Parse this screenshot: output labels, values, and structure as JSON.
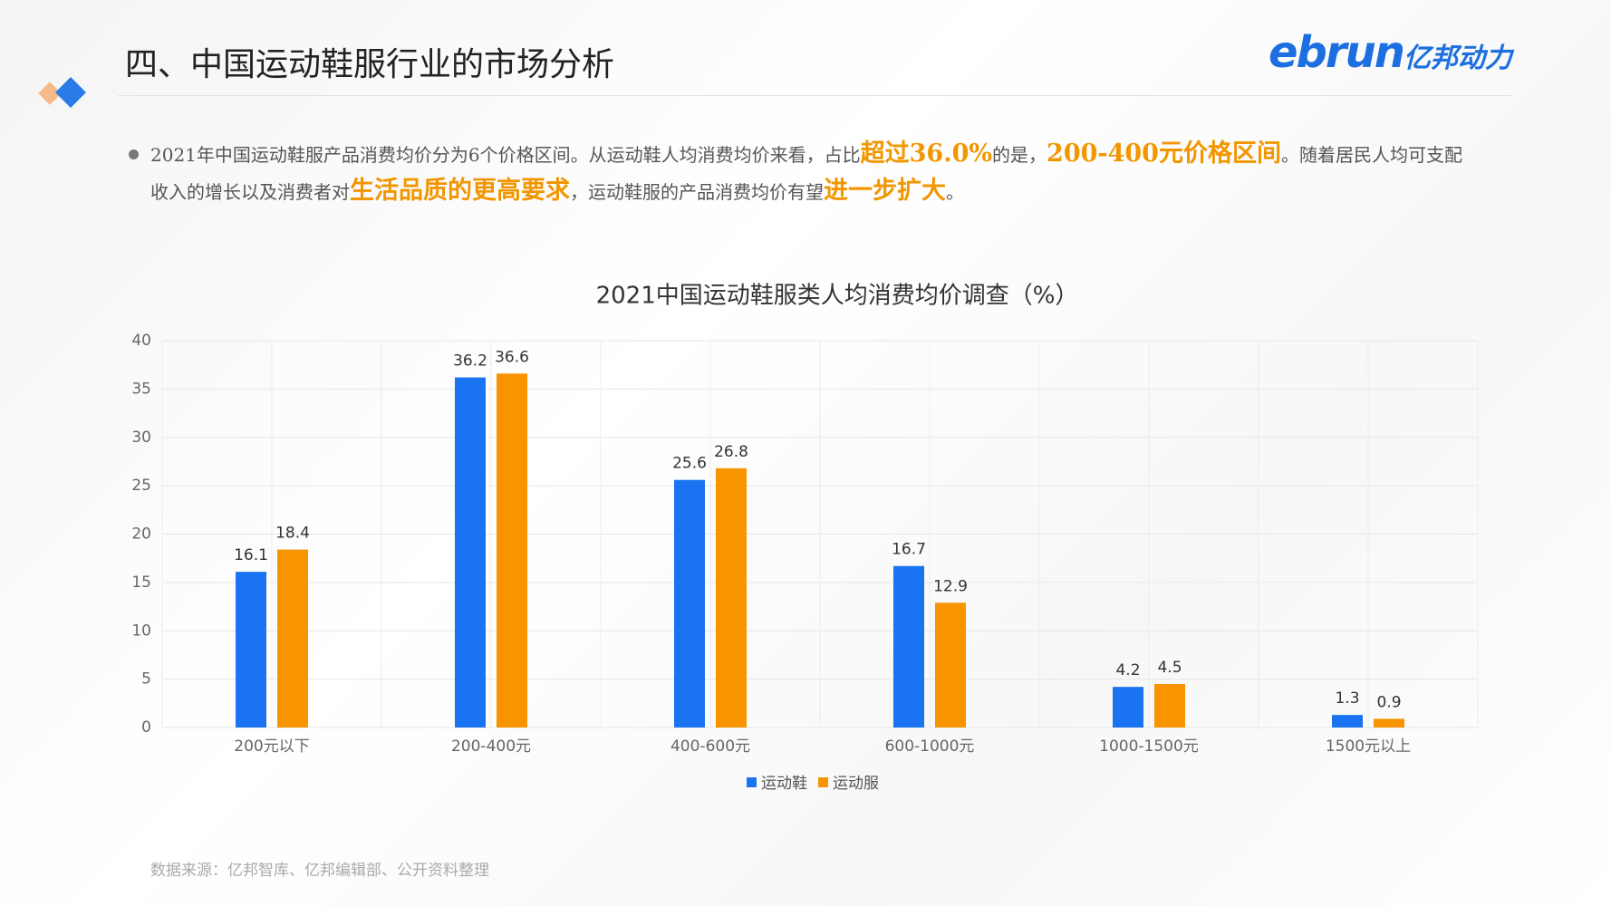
{
  "header": {
    "title": "四、中国运动鞋服行业的市场分析",
    "logo_main": "ebrun",
    "logo_sub": "亿邦动力"
  },
  "paragraph": {
    "parts": [
      {
        "text": "2021年中国运动鞋服产品消费均价分为6个价格区间。从运动鞋人均消费均价来看，占比",
        "highlight": false
      },
      {
        "text": "超过36.0%",
        "highlight": true
      },
      {
        "text": "的是，",
        "highlight": false
      },
      {
        "text": "200-400元价格区间",
        "highlight": true
      },
      {
        "text": "。随着居民人均可支配收入的增长以及消费者对",
        "highlight": false
      },
      {
        "text": "生活品质的更高要求",
        "highlight": true
      },
      {
        "text": "，运动鞋服的产品消费均价有望",
        "highlight": false
      },
      {
        "text": "进一步扩大",
        "highlight": true
      },
      {
        "text": "。",
        "highlight": false
      }
    ]
  },
  "chart_data": {
    "type": "bar",
    "title": "2021中国运动鞋服类人均消费均价调查（%）",
    "categories": [
      "200元以下",
      "200-400元",
      "400-600元",
      "600-1000元",
      "1000-1500元",
      "1500元以上"
    ],
    "series": [
      {
        "name": "运动鞋",
        "color": "#1a73f0",
        "values": [
          16.1,
          36.2,
          25.6,
          16.7,
          4.2,
          1.3
        ]
      },
      {
        "name": "运动服",
        "color": "#f79400",
        "values": [
          18.4,
          36.6,
          26.8,
          12.9,
          4.5,
          0.9
        ]
      }
    ],
    "ylim": [
      0,
      40
    ],
    "yticks": [
      0,
      5,
      10,
      15,
      20,
      25,
      30,
      35,
      40
    ],
    "grid": true,
    "legend": "bottom"
  },
  "source": "数据来源：亿邦智库、亿邦编辑部、公开资料整理"
}
